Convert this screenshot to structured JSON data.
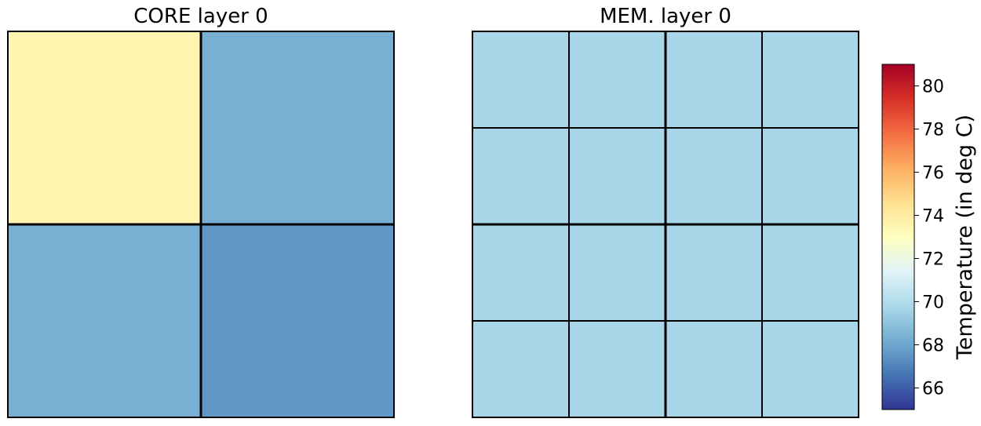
{
  "chart_data": [
    {
      "type": "heatmap",
      "title": "CORE layer 0",
      "rows": 2,
      "cols": 2,
      "values": [
        [
          73.5,
          68.3
        ],
        [
          68.3,
          67.6
        ]
      ]
    },
    {
      "type": "heatmap",
      "title": "MEM. layer 0",
      "rows": 4,
      "cols": 4,
      "values": [
        [
          69.7,
          69.7,
          69.7,
          69.7
        ],
        [
          69.7,
          69.7,
          69.7,
          69.7
        ],
        [
          69.7,
          69.7,
          69.7,
          69.7
        ],
        [
          69.7,
          69.7,
          69.7,
          69.7
        ]
      ]
    }
  ],
  "colorbar": {
    "label": "Temperature (in deg C)",
    "vmin": 65,
    "vmax": 81,
    "ticks": [
      "66",
      "68",
      "70",
      "72",
      "74",
      "76",
      "78",
      "80"
    ],
    "colormap": [
      "#313695",
      "#4575b4",
      "#74add1",
      "#abd9e9",
      "#e0f3f8",
      "#ffffbf",
      "#fee090",
      "#fdae61",
      "#f46d43",
      "#d73027",
      "#a50026"
    ]
  }
}
